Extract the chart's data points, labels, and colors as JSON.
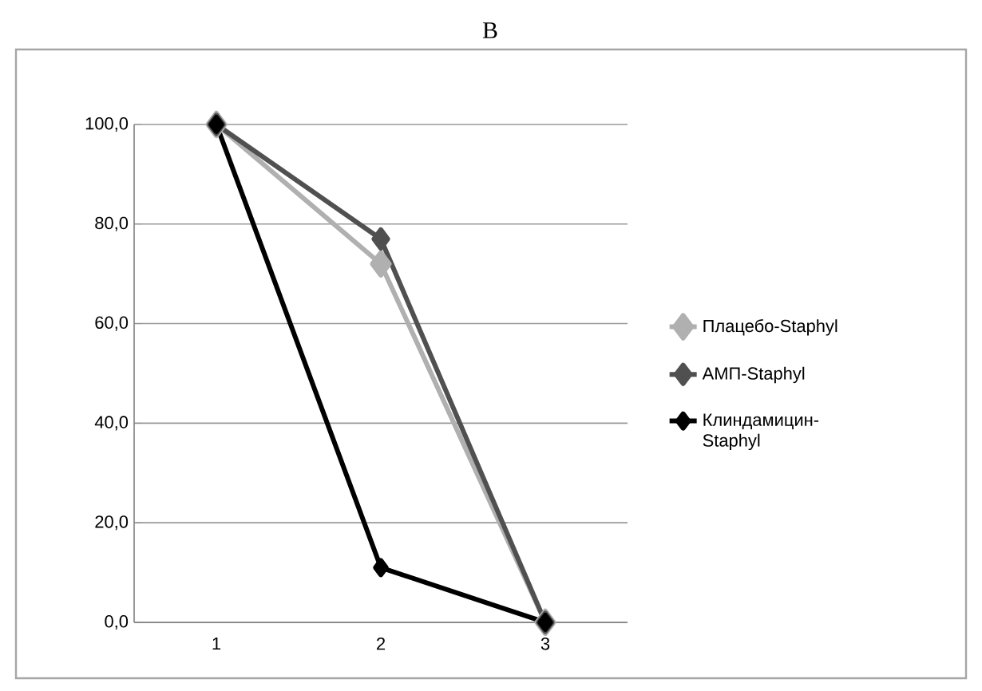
{
  "chart_data": {
    "type": "line",
    "title": "В",
    "categories": [
      "1",
      "2",
      "3"
    ],
    "series": [
      {
        "name": "Плацебо-Staphyl",
        "color": "#b0b0b0",
        "values": [
          100,
          72,
          0
        ]
      },
      {
        "name": "АМП-Staphyl",
        "color": "#505050",
        "values": [
          100,
          77,
          0
        ]
      },
      {
        "name": "Клиндамицин-Staphyl",
        "color": "#000000",
        "values": [
          100,
          11,
          0
        ]
      }
    ],
    "ylim": [
      0,
      100
    ],
    "yticks": [
      {
        "value": 0,
        "label": "0,0"
      },
      {
        "value": 20,
        "label": "20,0"
      },
      {
        "value": 40,
        "label": "40,0"
      },
      {
        "value": 60,
        "label": "60,0"
      },
      {
        "value": 80,
        "label": "80,0"
      },
      {
        "value": 100,
        "label": "100,0"
      }
    ],
    "grid": "y",
    "legend": "right",
    "marker": "diamond",
    "line_style": "solid"
  }
}
